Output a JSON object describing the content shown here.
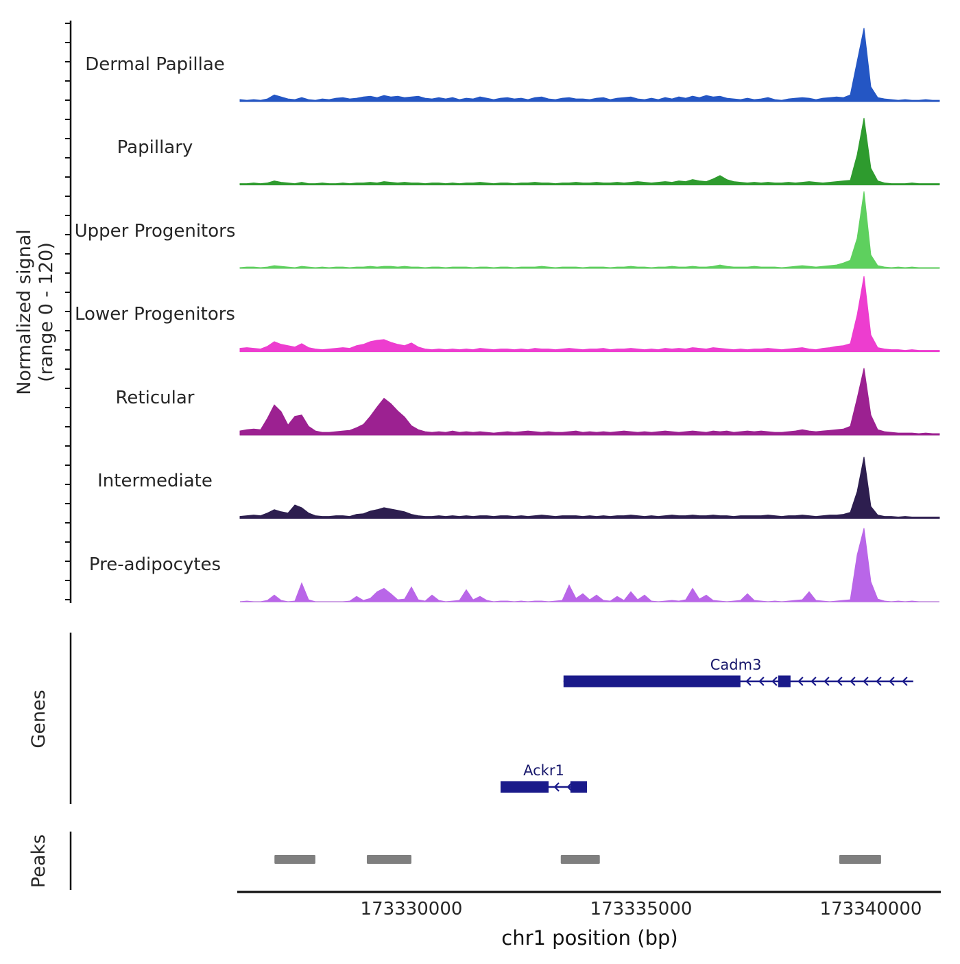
{
  "chart_data": {
    "type": "area",
    "title": "",
    "x_axis": {
      "label": "chr1 position (bp)",
      "range_bp": [
        173326270,
        173341490
      ],
      "ticks": [
        173330000,
        173335000,
        173340000
      ],
      "tick_labels": [
        "173330000",
        "173335000",
        "173340000"
      ]
    },
    "y_axis": {
      "label": "Normalized signal",
      "sublabel": "(range 0 - 120)",
      "range": [
        0,
        120
      ]
    },
    "series": [
      {
        "name": "Dermal Papillae",
        "color": "#2456c4",
        "values": [
          3,
          2,
          3,
          2,
          4,
          10,
          7,
          4,
          3,
          6,
          3,
          2,
          4,
          3,
          5,
          6,
          4,
          5,
          7,
          8,
          6,
          9,
          7,
          8,
          6,
          7,
          8,
          5,
          4,
          6,
          4,
          6,
          3,
          5,
          4,
          7,
          5,
          3,
          5,
          6,
          4,
          5,
          3,
          6,
          7,
          4,
          3,
          5,
          6,
          4,
          4,
          3,
          5,
          6,
          3,
          5,
          6,
          7,
          4,
          3,
          5,
          3,
          6,
          4,
          7,
          5,
          8,
          6,
          9,
          7,
          8,
          5,
          4,
          3,
          5,
          3,
          4,
          6,
          3,
          2,
          4,
          5,
          6,
          5,
          3,
          5,
          6,
          7,
          6,
          10,
          60,
          110,
          22,
          6,
          4,
          3,
          2,
          3,
          2,
          2,
          3,
          2,
          2
        ]
      },
      {
        "name": "Papillary",
        "color": "#2e9b2e",
        "values": [
          2,
          2,
          3,
          2,
          3,
          6,
          4,
          3,
          2,
          4,
          2,
          2,
          3,
          2,
          2,
          3,
          2,
          3,
          3,
          4,
          3,
          5,
          4,
          3,
          4,
          3,
          3,
          2,
          3,
          3,
          2,
          3,
          2,
          3,
          3,
          4,
          3,
          2,
          3,
          3,
          2,
          3,
          3,
          4,
          3,
          3,
          2,
          3,
          3,
          4,
          3,
          3,
          4,
          3,
          3,
          4,
          3,
          4,
          5,
          4,
          3,
          4,
          5,
          4,
          6,
          5,
          8,
          6,
          5,
          9,
          14,
          8,
          5,
          4,
          3,
          4,
          3,
          4,
          3,
          3,
          4,
          3,
          4,
          5,
          4,
          3,
          4,
          5,
          6,
          7,
          45,
          100,
          25,
          6,
          3,
          2,
          2,
          2,
          3,
          2,
          2,
          2,
          2
        ]
      },
      {
        "name": "Upper Progenitors",
        "color": "#5ed05e",
        "values": [
          1,
          2,
          2,
          1,
          2,
          4,
          3,
          2,
          1,
          3,
          2,
          1,
          2,
          1,
          2,
          2,
          1,
          2,
          2,
          3,
          2,
          3,
          3,
          2,
          3,
          2,
          2,
          1,
          2,
          2,
          1,
          2,
          2,
          2,
          1,
          2,
          2,
          1,
          2,
          2,
          1,
          2,
          2,
          2,
          3,
          2,
          1,
          2,
          2,
          2,
          1,
          2,
          2,
          2,
          1,
          2,
          2,
          3,
          2,
          2,
          1,
          2,
          2,
          3,
          2,
          2,
          3,
          2,
          2,
          3,
          5,
          3,
          2,
          2,
          2,
          3,
          2,
          2,
          2,
          1,
          2,
          3,
          4,
          3,
          2,
          3,
          4,
          5,
          8,
          12,
          45,
          115,
          20,
          4,
          2,
          1,
          2,
          1,
          2,
          1,
          1,
          1,
          1
        ]
      },
      {
        "name": "Lower Progenitors",
        "color": "#ed3dcf",
        "values": [
          5,
          6,
          5,
          4,
          8,
          15,
          11,
          9,
          7,
          12,
          6,
          4,
          3,
          4,
          5,
          6,
          5,
          9,
          11,
          15,
          17,
          18,
          14,
          11,
          9,
          13,
          7,
          4,
          3,
          4,
          3,
          4,
          3,
          4,
          3,
          5,
          4,
          3,
          4,
          4,
          3,
          4,
          3,
          5,
          4,
          4,
          3,
          4,
          5,
          4,
          3,
          4,
          4,
          5,
          3,
          4,
          4,
          5,
          4,
          3,
          4,
          3,
          5,
          4,
          5,
          4,
          6,
          5,
          4,
          6,
          5,
          4,
          3,
          4,
          3,
          4,
          4,
          5,
          4,
          3,
          4,
          5,
          6,
          4,
          3,
          5,
          6,
          8,
          9,
          12,
          55,
          113,
          25,
          6,
          4,
          3,
          3,
          2,
          3,
          2,
          2,
          2,
          2
        ]
      },
      {
        "name": "Reticular",
        "color": "#9c2191",
        "values": [
          6,
          8,
          9,
          8,
          25,
          45,
          35,
          15,
          28,
          30,
          13,
          6,
          4,
          4,
          5,
          6,
          7,
          11,
          16,
          28,
          42,
          55,
          47,
          36,
          27,
          14,
          8,
          5,
          4,
          5,
          4,
          6,
          4,
          5,
          4,
          5,
          4,
          3,
          4,
          5,
          4,
          5,
          6,
          5,
          4,
          5,
          4,
          4,
          5,
          6,
          4,
          5,
          4,
          5,
          4,
          5,
          6,
          5,
          4,
          5,
          4,
          5,
          6,
          5,
          4,
          5,
          6,
          5,
          4,
          6,
          5,
          6,
          4,
          5,
          6,
          5,
          6,
          5,
          4,
          4,
          5,
          6,
          8,
          6,
          5,
          6,
          7,
          8,
          9,
          13,
          55,
          100,
          30,
          8,
          5,
          4,
          3,
          3,
          3,
          2,
          3,
          2,
          2
        ]
      },
      {
        "name": "Intermediate",
        "color": "#2d1e4f",
        "values": [
          3,
          4,
          5,
          4,
          8,
          13,
          10,
          8,
          20,
          16,
          8,
          4,
          3,
          3,
          4,
          4,
          3,
          6,
          7,
          11,
          13,
          16,
          14,
          12,
          10,
          6,
          4,
          3,
          3,
          4,
          3,
          4,
          3,
          4,
          3,
          4,
          4,
          3,
          4,
          4,
          3,
          4,
          3,
          4,
          5,
          4,
          3,
          4,
          4,
          4,
          3,
          4,
          3,
          4,
          3,
          4,
          4,
          5,
          4,
          3,
          4,
          3,
          4,
          5,
          4,
          4,
          5,
          4,
          4,
          5,
          4,
          4,
          3,
          4,
          4,
          4,
          4,
          5,
          4,
          3,
          4,
          4,
          5,
          4,
          3,
          4,
          5,
          5,
          6,
          9,
          40,
          92,
          18,
          5,
          3,
          3,
          2,
          3,
          2,
          2,
          2,
          2,
          2
        ]
      },
      {
        "name": "Pre-adipocytes",
        "color": "#b966e8",
        "values": [
          0,
          1,
          0,
          0,
          2,
          10,
          2,
          0,
          1,
          28,
          3,
          0,
          0,
          0,
          0,
          0,
          1,
          8,
          2,
          5,
          15,
          20,
          12,
          3,
          4,
          22,
          3,
          1,
          10,
          2,
          0,
          1,
          2,
          18,
          3,
          8,
          2,
          0,
          1,
          1,
          0,
          1,
          0,
          1,
          1,
          0,
          1,
          2,
          25,
          5,
          12,
          3,
          10,
          2,
          1,
          8,
          2,
          15,
          3,
          10,
          1,
          0,
          1,
          2,
          1,
          3,
          20,
          4,
          10,
          2,
          1,
          0,
          1,
          2,
          12,
          2,
          1,
          0,
          1,
          0,
          1,
          2,
          3,
          15,
          2,
          1,
          0,
          1,
          2,
          3,
          70,
          110,
          30,
          4,
          1,
          0,
          1,
          0,
          1,
          0,
          0,
          0,
          0
        ]
      }
    ],
    "genes": {
      "section_label": "Genes",
      "color": "#1a1a8a",
      "items": [
        {
          "name": "Cadm3",
          "strand": "-",
          "span_bp": [
            173333310,
            173340920
          ],
          "thick_exons_bp": [
            [
              173333310,
              173337160
            ],
            [
              173337980,
              173338250
            ]
          ],
          "label_bp": 173337060
        },
        {
          "name": "Ackr1",
          "strand": "-",
          "span_bp": [
            173331940,
            173333820
          ],
          "thick_exons_bp": [
            [
              173331940,
              173332985
            ],
            [
              173333460,
              173333820
            ]
          ],
          "label_bp": 173332880
        }
      ]
    },
    "peaks": {
      "section_label": "Peaks",
      "color": "#7f7f7f",
      "regions_bp": [
        [
          173327020,
          173327910
        ],
        [
          173329030,
          173330000
        ],
        [
          173333250,
          173334100
        ],
        [
          173339310,
          173340220
        ]
      ]
    }
  }
}
